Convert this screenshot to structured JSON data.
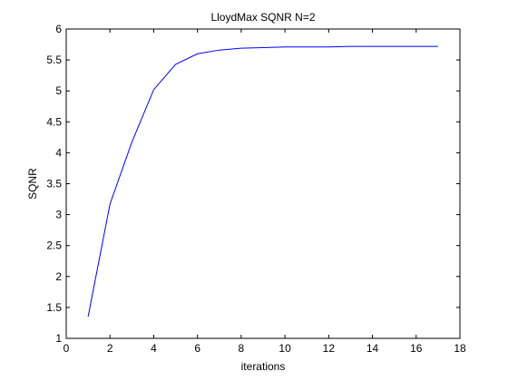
{
  "chart_data": {
    "type": "line",
    "title": "LloydMax SQNR N=2",
    "xlabel": "iterations",
    "ylabel": "SQNR",
    "xlim": [
      0,
      18
    ],
    "ylim": [
      1,
      6
    ],
    "xticks": [
      0,
      2,
      4,
      6,
      8,
      10,
      12,
      14,
      16,
      18
    ],
    "yticks": [
      1,
      1.5,
      2,
      2.5,
      3,
      3.5,
      4,
      4.5,
      5,
      5.5,
      6
    ],
    "grid": false,
    "legend": "none",
    "series": [
      {
        "color": "#0000ff",
        "x": [
          1,
          2,
          3,
          4,
          5,
          6,
          7,
          8,
          9,
          10,
          11,
          12,
          13,
          14,
          15,
          16,
          17
        ],
        "y": [
          1.35,
          3.17,
          4.17,
          5.02,
          5.43,
          5.6,
          5.66,
          5.69,
          5.7,
          5.71,
          5.71,
          5.71,
          5.72,
          5.72,
          5.72,
          5.72,
          5.72
        ]
      }
    ]
  }
}
